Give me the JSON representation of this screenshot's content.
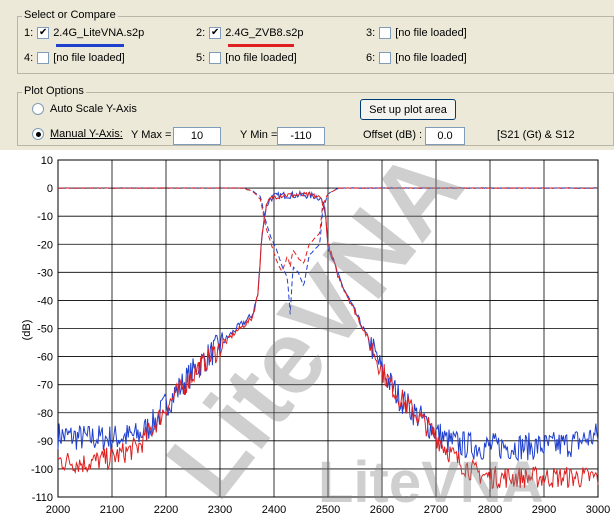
{
  "select": {
    "title": "Select or Compare",
    "slots": [
      {
        "index": "1:",
        "checked": true,
        "file": "2.4G_LiteVNA.s2p",
        "color": "#1f3fcf"
      },
      {
        "index": "2:",
        "checked": true,
        "file": "2.4G_ZVB8.s2p",
        "color": "#e02020"
      },
      {
        "index": "3:",
        "checked": false,
        "file": "[no file loaded]"
      },
      {
        "index": "4:",
        "checked": false,
        "file": "[no file loaded]"
      },
      {
        "index": "5:",
        "checked": false,
        "file": "[no file loaded]"
      },
      {
        "index": "6:",
        "checked": false,
        "file": "[no file loaded]"
      }
    ]
  },
  "plot_options": {
    "title": "Plot Options",
    "auto_scale_label": "Auto Scale Y-Axis",
    "manual_label": "Manual Y-Axis:",
    "selected_mode": "manual",
    "ymax_label": "Y Max =",
    "ymax_value": "10",
    "ymin_label": "Y Min =",
    "ymin_value": "-110",
    "offset_label": "Offset (dB) :",
    "offset_value": "0.0",
    "setup_button": "Set up plot area",
    "trace_info": "[S21 (Gt) & S12"
  },
  "watermark": "LiteVNA",
  "chart_data": {
    "type": "line",
    "ylabel": "(dB)",
    "xlim": [
      2000,
      3000
    ],
    "ylim": [
      -110,
      10
    ],
    "x_ticks": [
      2000,
      2100,
      2200,
      2300,
      2400,
      2500,
      2600,
      2700,
      2800,
      2900,
      3000
    ],
    "y_ticks": [
      10,
      0,
      -10,
      -20,
      -30,
      -40,
      -50,
      -60,
      -70,
      -80,
      -90,
      -100,
      -110
    ],
    "grid": true,
    "legend": "none",
    "series": [
      {
        "role": "S21 transmission",
        "color": "#1f3fcf",
        "dash": false,
        "noise": 5,
        "x": [
          2000,
          2050,
          2100,
          2150,
          2180,
          2200,
          2230,
          2260,
          2300,
          2330,
          2350,
          2360,
          2370,
          2378,
          2385,
          2392,
          2400,
          2420,
          2440,
          2460,
          2480,
          2488,
          2495,
          2500,
          2520,
          2550,
          2580,
          2600,
          2630,
          2660,
          2690,
          2720,
          2740,
          2770,
          2800,
          2850,
          2900,
          2950,
          3000
        ],
        "y": [
          -88,
          -89,
          -89,
          -88,
          -83,
          -77,
          -70,
          -63,
          -56,
          -50,
          -47,
          -45,
          -38,
          -16,
          -7,
          -4,
          -3,
          -2.5,
          -2.5,
          -2.5,
          -3,
          -4,
          -8,
          -20,
          -32,
          -44,
          -56,
          -65,
          -74,
          -80,
          -85,
          -90,
          -91,
          -92,
          -92,
          -92,
          -92,
          -91,
          -88
        ]
      },
      {
        "role": "S21 transmission",
        "color": "#e02020",
        "dash": false,
        "noise": 4,
        "x": [
          2000,
          2050,
          2100,
          2150,
          2180,
          2200,
          2230,
          2260,
          2300,
          2330,
          2350,
          2360,
          2370,
          2378,
          2385,
          2392,
          2400,
          2420,
          2440,
          2460,
          2480,
          2488,
          2495,
          2500,
          2520,
          2550,
          2580,
          2600,
          2630,
          2660,
          2690,
          2720,
          2740,
          2770,
          2800,
          2850,
          2900,
          2950,
          3000
        ],
        "y": [
          -97,
          -98,
          -96,
          -92,
          -84,
          -78,
          -71,
          -64,
          -57,
          -51,
          -48,
          -46,
          -38,
          -16,
          -7,
          -4,
          -3,
          -2.5,
          -2.5,
          -2.5,
          -3,
          -4,
          -8,
          -20,
          -32,
          -44,
          -56,
          -65,
          -74,
          -80,
          -86,
          -93,
          -97,
          -101,
          -103,
          -103,
          -103,
          -103,
          -103
        ]
      },
      {
        "role": "S11 reflection",
        "color": "#1f3fcf",
        "dash": true,
        "noise": 0.4,
        "x": [
          2000,
          2340,
          2360,
          2375,
          2385,
          2395,
          2405,
          2415,
          2425,
          2430,
          2435,
          2445,
          2455,
          2465,
          2475,
          2485,
          2490,
          2500,
          2520,
          3000
        ],
        "y": [
          0,
          0,
          -1,
          -3,
          -12,
          -18,
          -22,
          -28,
          -32,
          -45,
          -28,
          -30,
          -35,
          -24,
          -22,
          -20,
          -8,
          -2,
          0,
          0
        ]
      },
      {
        "role": "S11 reflection",
        "color": "#e02020",
        "dash": true,
        "noise": 0.4,
        "x": [
          2000,
          2340,
          2360,
          2375,
          2385,
          2395,
          2405,
          2415,
          2425,
          2430,
          2435,
          2445,
          2455,
          2465,
          2475,
          2485,
          2490,
          2500,
          2520,
          3000
        ],
        "y": [
          0,
          0,
          -1,
          -4,
          -14,
          -20,
          -26,
          -30,
          -24,
          -28,
          -22,
          -25,
          -27,
          -20,
          -18,
          -16,
          -6,
          -2,
          0,
          0
        ]
      }
    ]
  }
}
